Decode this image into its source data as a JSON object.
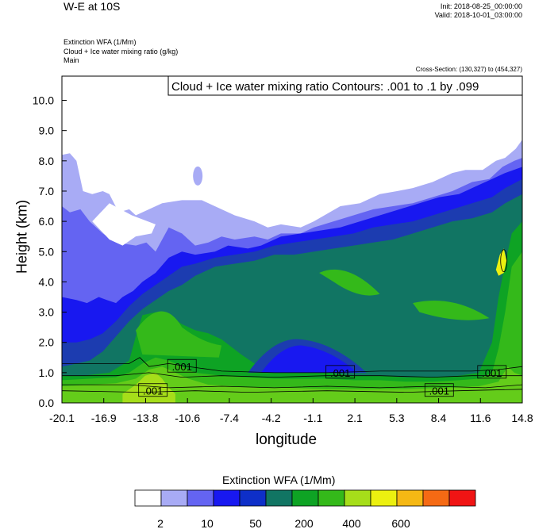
{
  "header": {
    "title": "W-E at 10S",
    "init": "Init: 2018-08-25_00:00:00",
    "valid": "Valid: 2018-10-01_03:00:00",
    "fields": [
      "Extinction WFA   (1/Mm)",
      "Cloud + Ice water mixing ratio   (g/kg)",
      "Main"
    ],
    "cross_section": "Cross-Section: (130,327) to (454,327)"
  },
  "chart_data": {
    "type": "area",
    "title": "Cloud + Ice water mixing ratio Contours: .001 to .1 by .099",
    "xlabel": "longitude",
    "ylabel": "Height (km)",
    "xlim": [
      -20.1,
      14.8
    ],
    "ylim": [
      0.0,
      10.8
    ],
    "x_ticks": [
      "-20.1",
      "-16.9",
      "-13.8",
      "-10.6",
      "-7.4",
      "-4.2",
      "-1.1",
      "2.1",
      "5.3",
      "8.4",
      "11.6",
      "14.8"
    ],
    "y_ticks": [
      "0.0",
      "1.0",
      "2.0",
      "3.0",
      "4.0",
      "5.0",
      "6.0",
      "7.0",
      "8.0",
      "9.0",
      "10.0"
    ],
    "grid": false,
    "contour_labels": [
      {
        "text": ".001",
        "x": -11.0,
        "y": 1.2
      },
      {
        "text": ".001",
        "x": -13.2,
        "y": 0.4
      },
      {
        "text": ".001",
        "x": 1.0,
        "y": 1.0
      },
      {
        "text": ".001",
        "x": 8.5,
        "y": 0.4
      },
      {
        "text": ".001",
        "x": 12.5,
        "y": 1.0
      }
    ],
    "layers": [
      {
        "value": 2,
        "color": "#a8abf5",
        "top": [
          [
            -20.1,
            8.2
          ],
          [
            -19.5,
            8.25
          ],
          [
            -19.0,
            8.0
          ],
          [
            -18.5,
            7.0
          ],
          [
            -17.8,
            6.9
          ],
          [
            -17.0,
            7.0
          ],
          [
            -16.5,
            6.9
          ],
          [
            -15.8,
            6.3
          ],
          [
            -15.0,
            6.4
          ],
          [
            -14.5,
            6.2
          ],
          [
            -13.5,
            6.4
          ],
          [
            -12.5,
            6.6
          ],
          [
            -11.0,
            6.7
          ],
          [
            -9.5,
            6.7
          ],
          [
            -8.0,
            6.4
          ],
          [
            -7.0,
            6.2
          ],
          [
            -5.5,
            6.0
          ],
          [
            -4.5,
            5.8
          ],
          [
            -3.5,
            5.9
          ],
          [
            -2.0,
            5.8
          ],
          [
            -1.0,
            6.0
          ],
          [
            1.0,
            6.5
          ],
          [
            2.5,
            6.6
          ],
          [
            4.0,
            6.9
          ],
          [
            5.3,
            7.0
          ],
          [
            6.5,
            7.1
          ],
          [
            8.0,
            7.3
          ],
          [
            9.5,
            7.6
          ],
          [
            10.5,
            7.7
          ],
          [
            11.8,
            7.7
          ],
          [
            12.8,
            8.0
          ],
          [
            13.5,
            8.1
          ],
          [
            14.3,
            8.4
          ],
          [
            14.8,
            8.7
          ]
        ]
      },
      {
        "value": 5,
        "color": "#6464f2",
        "top": [
          [
            -20.1,
            6.5
          ],
          [
            -19.5,
            6.3
          ],
          [
            -18.7,
            6.4
          ],
          [
            -18.0,
            6.0
          ],
          [
            -17.0,
            5.6
          ],
          [
            -16.0,
            5.3
          ],
          [
            -14.5,
            5.2
          ],
          [
            -13.7,
            5.3
          ],
          [
            -13.0,
            5.0
          ],
          [
            -12.0,
            5.8
          ],
          [
            -11.0,
            5.6
          ],
          [
            -10.0,
            5.2
          ],
          [
            -9.0,
            5.3
          ],
          [
            -8.0,
            5.5
          ],
          [
            -7.0,
            5.4
          ],
          [
            -5.5,
            5.5
          ],
          [
            -4.5,
            5.4
          ],
          [
            -3.5,
            5.6
          ],
          [
            -2.0,
            5.6
          ],
          [
            -1.0,
            5.8
          ],
          [
            0.5,
            6.0
          ],
          [
            2.0,
            6.2
          ],
          [
            3.5,
            6.4
          ],
          [
            5.0,
            6.5
          ],
          [
            6.5,
            6.6
          ],
          [
            8.0,
            6.8
          ],
          [
            9.5,
            7.0
          ],
          [
            11.0,
            7.3
          ],
          [
            12.3,
            7.4
          ],
          [
            13.3,
            7.8
          ],
          [
            14.2,
            8.0
          ],
          [
            14.8,
            8.1
          ]
        ]
      },
      {
        "value": 10,
        "color": "#1818f0",
        "top": [
          [
            -20.1,
            3.5
          ],
          [
            -19.0,
            3.4
          ],
          [
            -18.2,
            3.3
          ],
          [
            -17.3,
            3.5
          ],
          [
            -16.7,
            3.4
          ],
          [
            -16.0,
            3.3
          ],
          [
            -15.5,
            3.5
          ],
          [
            -14.7,
            3.7
          ],
          [
            -14.0,
            4.0
          ],
          [
            -13.0,
            4.3
          ],
          [
            -12.0,
            4.8
          ],
          [
            -11.0,
            5.0
          ],
          [
            -10.0,
            4.9
          ],
          [
            -8.5,
            5.0
          ],
          [
            -7.5,
            5.2
          ],
          [
            -6.0,
            5.1
          ],
          [
            -5.0,
            5.2
          ],
          [
            -3.5,
            5.5
          ],
          [
            -2.0,
            5.6
          ],
          [
            -0.5,
            5.7
          ],
          [
            1.0,
            5.8
          ],
          [
            2.5,
            6.0
          ],
          [
            4.0,
            6.2
          ],
          [
            5.5,
            6.4
          ],
          [
            7.0,
            6.6
          ],
          [
            8.5,
            6.8
          ],
          [
            10.0,
            6.9
          ],
          [
            11.5,
            7.2
          ],
          [
            12.5,
            7.4
          ],
          [
            13.5,
            7.6
          ],
          [
            14.8,
            7.8
          ]
        ]
      },
      {
        "value": 20,
        "color": "#1c3cb0",
        "top": [
          [
            -20.1,
            2.0
          ],
          [
            -19.0,
            2.0
          ],
          [
            -18.0,
            2.1
          ],
          [
            -17.0,
            2.3
          ],
          [
            -16.0,
            2.7
          ],
          [
            -15.0,
            3.2
          ],
          [
            -14.0,
            3.6
          ],
          [
            -13.0,
            3.9
          ],
          [
            -12.0,
            4.2
          ],
          [
            -11.0,
            4.5
          ],
          [
            -10.0,
            4.6
          ],
          [
            -8.5,
            4.8
          ],
          [
            -7.0,
            4.9
          ],
          [
            -5.5,
            5.0
          ],
          [
            -4.0,
            5.2
          ],
          [
            -2.5,
            5.3
          ],
          [
            -1.0,
            5.4
          ],
          [
            0.5,
            5.5
          ],
          [
            2.0,
            5.6
          ],
          [
            3.5,
            5.8
          ],
          [
            5.0,
            5.9
          ],
          [
            6.5,
            6.0
          ],
          [
            8.0,
            6.2
          ],
          [
            9.5,
            6.4
          ],
          [
            11.0,
            6.6
          ],
          [
            12.5,
            6.8
          ],
          [
            13.5,
            7.1
          ],
          [
            14.8,
            7.4
          ]
        ]
      },
      {
        "value": 50,
        "color": "#117563",
        "top": [
          [
            -20.1,
            1.2
          ],
          [
            -19.0,
            1.3
          ],
          [
            -18.0,
            1.4
          ],
          [
            -17.0,
            1.7
          ],
          [
            -16.0,
            2.2
          ],
          [
            -15.0,
            2.7
          ],
          [
            -14.0,
            3.1
          ],
          [
            -13.0,
            3.4
          ],
          [
            -12.0,
            3.7
          ],
          [
            -11.0,
            3.9
          ],
          [
            -10.0,
            4.2
          ],
          [
            -8.5,
            4.5
          ],
          [
            -7.0,
            4.6
          ],
          [
            -5.5,
            4.7
          ],
          [
            -4.0,
            4.9
          ],
          [
            -2.5,
            4.9
          ],
          [
            -1.0,
            5.0
          ],
          [
            0.5,
            5.1
          ],
          [
            2.0,
            5.2
          ],
          [
            3.5,
            5.3
          ],
          [
            5.0,
            5.4
          ],
          [
            6.5,
            5.6
          ],
          [
            8.0,
            5.8
          ],
          [
            9.5,
            6.0
          ],
          [
            11.0,
            6.1
          ],
          [
            12.5,
            6.3
          ],
          [
            13.5,
            6.6
          ],
          [
            14.8,
            6.9
          ]
        ]
      },
      {
        "value": 100,
        "color": "#0ea324",
        "top": [
          [
            -20.1,
            0.9
          ],
          [
            -18.5,
            0.9
          ],
          [
            -16.5,
            1.0
          ],
          [
            -15.0,
            1.4
          ],
          [
            -14.5,
            2.2
          ],
          [
            -14.0,
            2.9
          ],
          [
            -13.0,
            3.0
          ],
          [
            -12.0,
            2.9
          ],
          [
            -11.0,
            2.6
          ],
          [
            -10.0,
            2.4
          ],
          [
            -9.0,
            2.3
          ],
          [
            -8.0,
            2.1
          ],
          [
            -6.5,
            1.6
          ],
          [
            -5.5,
            1.3
          ],
          [
            -4.0,
            1.1
          ],
          [
            -2.0,
            1.0
          ],
          [
            0.0,
            1.0
          ],
          [
            2.0,
            0.9
          ],
          [
            4.0,
            0.9
          ],
          [
            6.0,
            0.85
          ],
          [
            8.0,
            0.85
          ],
          [
            10.0,
            0.9
          ],
          [
            11.5,
            1.0
          ],
          [
            12.5,
            2.0
          ],
          [
            13.0,
            3.5
          ],
          [
            13.5,
            4.6
          ],
          [
            14.0,
            5.6
          ],
          [
            14.8,
            6.0
          ]
        ]
      },
      {
        "value": 200,
        "color": "#34b91a",
        "top": [
          [
            -20.1,
            0.75
          ],
          [
            -18.0,
            0.8
          ],
          [
            -16.0,
            0.85
          ],
          [
            -15.0,
            1.0
          ],
          [
            -14.0,
            1.3
          ],
          [
            -13.0,
            1.5
          ],
          [
            -12.0,
            1.4
          ],
          [
            -11.0,
            1.2
          ],
          [
            -10.0,
            1.0
          ],
          [
            -8.0,
            0.9
          ],
          [
            -6.0,
            0.85
          ],
          [
            -4.0,
            0.8
          ],
          [
            -2.0,
            0.8
          ],
          [
            0.0,
            0.8
          ],
          [
            2.0,
            0.75
          ],
          [
            4.0,
            0.75
          ],
          [
            6.0,
            0.7
          ],
          [
            8.0,
            0.7
          ],
          [
            10.0,
            0.75
          ],
          [
            11.5,
            0.8
          ],
          [
            12.5,
            1.0
          ],
          [
            13.0,
            1.8
          ],
          [
            13.5,
            3.0
          ],
          [
            14.0,
            4.5
          ],
          [
            14.8,
            5.0
          ]
        ]
      },
      {
        "value": 300,
        "color": "#64cc1a",
        "top": [
          [
            -20.1,
            0.55
          ],
          [
            -18.0,
            0.6
          ],
          [
            -16.0,
            0.65
          ],
          [
            -14.5,
            0.8
          ],
          [
            -13.5,
            1.1
          ],
          [
            -12.5,
            1.2
          ],
          [
            -11.5,
            1.0
          ],
          [
            -10.5,
            0.8
          ],
          [
            -9.0,
            0.6
          ],
          [
            -7.0,
            0.55
          ],
          [
            -5.0,
            0.5
          ],
          [
            -3.0,
            0.5
          ],
          [
            0.0,
            0.45
          ],
          [
            3.0,
            0.45
          ],
          [
            6.0,
            0.45
          ],
          [
            9.0,
            0.5
          ],
          [
            11.5,
            0.55
          ],
          [
            13.0,
            0.7
          ],
          [
            13.7,
            1.2
          ],
          [
            14.2,
            1.0
          ],
          [
            14.8,
            0.9
          ]
        ]
      },
      {
        "value": 400,
        "color": "#a6de1a",
        "top": [
          [
            -15.5,
            0.3
          ],
          [
            -14.5,
            0.6
          ],
          [
            -13.8,
            0.9
          ],
          [
            -13.0,
            1.0
          ],
          [
            -12.5,
            0.8
          ],
          [
            -12.0,
            0.5
          ],
          [
            -11.5,
            0.3
          ]
        ]
      },
      {
        "value": 500,
        "color": "#ecf010",
        "top": [
          [
            12.8,
            4.4
          ],
          [
            13.1,
            4.9
          ],
          [
            13.4,
            5.1
          ],
          [
            13.6,
            4.7
          ],
          [
            13.4,
            4.3
          ],
          [
            13.0,
            4.2
          ]
        ]
      }
    ]
  },
  "colorbar": {
    "title": "Extinction WFA  (1/Mm)",
    "labels": [
      "2",
      "10",
      "50",
      "200",
      "400",
      "600"
    ],
    "colors": [
      "#ffffff",
      "#a8abf5",
      "#6464f2",
      "#1818f0",
      "#0e2fc8",
      "#117563",
      "#0ea324",
      "#34b91a",
      "#a6de1a",
      "#ecf010",
      "#f5b814",
      "#f56a14",
      "#f01414"
    ]
  }
}
